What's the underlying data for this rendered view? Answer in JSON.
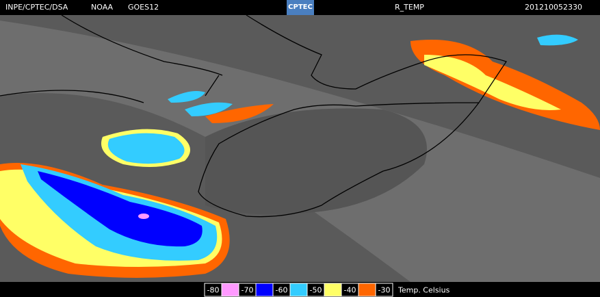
{
  "header": {
    "source": "INPE/CPTEC/DSA",
    "agency": "NOAA",
    "satellite": "GOES12",
    "logo": "CPTEC",
    "product": "R_TEMP",
    "timestamp": "201210052330"
  },
  "legend": {
    "labels": [
      "-80",
      "-70",
      "-60",
      "-50",
      "-40",
      "-30"
    ],
    "colors": [
      "#ff99ff",
      "#0000ff",
      "#33ccff",
      "#ffff66",
      "#ff6600"
    ],
    "unit": "Temp. Celsius"
  }
}
